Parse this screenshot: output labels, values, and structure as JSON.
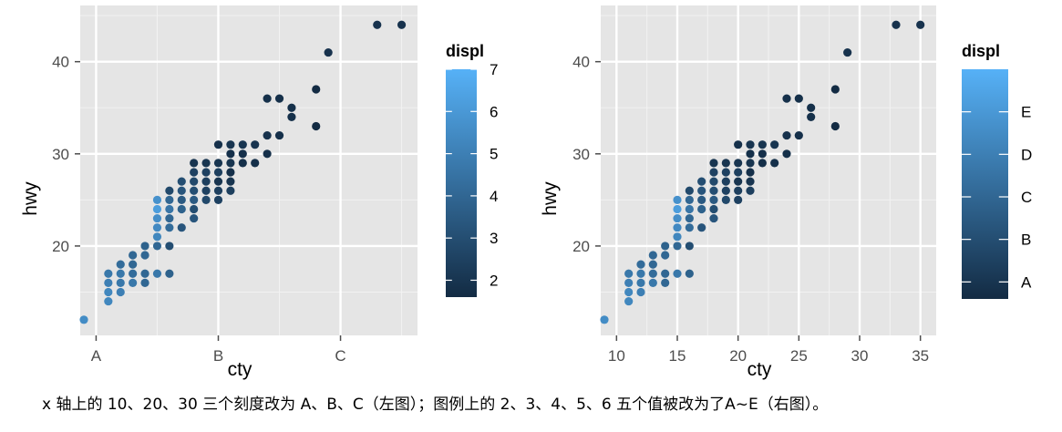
{
  "chart_data": [
    {
      "type": "scatter",
      "xlabel": "cty",
      "ylabel": "hwy",
      "xlim": [
        8.7,
        36.3
      ],
      "ylim": [
        10.3,
        46.1
      ],
      "x_ticks": [
        10,
        20,
        30
      ],
      "x_tick_labels": [
        "A",
        "B",
        "C"
      ],
      "y_ticks": [
        20,
        30,
        40
      ],
      "y_tick_labels": [
        "20",
        "30",
        "40"
      ],
      "legend": {
        "title": "displ",
        "placement": "right",
        "type": "colorbar",
        "range": [
          1.6,
          7.0
        ],
        "breaks": [
          2,
          3,
          4,
          5,
          6,
          7
        ],
        "labels": [
          "2",
          "3",
          "4",
          "5",
          "6",
          "7"
        ],
        "low_color": "#132B43",
        "high_color": "#56B1F7"
      },
      "points": [
        [
          9,
          12,
          5.5
        ],
        [
          11,
          14,
          5.3
        ],
        [
          11,
          15,
          5.3
        ],
        [
          11,
          16,
          5.0
        ],
        [
          11,
          17,
          4.7
        ],
        [
          12,
          15,
          5.0
        ],
        [
          12,
          16,
          4.7
        ],
        [
          12,
          17,
          4.7
        ],
        [
          12,
          18,
          4.2
        ],
        [
          13,
          16,
          4.7
        ],
        [
          13,
          17,
          4.2
        ],
        [
          13,
          18,
          4.0
        ],
        [
          13,
          19,
          4.0
        ],
        [
          14,
          16,
          4.0
        ],
        [
          14,
          17,
          4.0
        ],
        [
          14,
          19,
          4.0
        ],
        [
          14,
          20,
          3.8
        ],
        [
          15,
          17,
          4.7
        ],
        [
          15,
          20,
          4.0
        ],
        [
          15,
          21,
          5.3
        ],
        [
          15,
          22,
          5.4
        ],
        [
          15,
          23,
          5.6
        ],
        [
          15,
          24,
          6.2
        ],
        [
          15,
          25,
          5.7
        ],
        [
          16,
          17,
          3.8
        ],
        [
          16,
          20,
          3.0
        ],
        [
          16,
          22,
          4.2
        ],
        [
          16,
          23,
          4.0
        ],
        [
          16,
          24,
          4.6
        ],
        [
          16,
          25,
          4.0
        ],
        [
          16,
          26,
          2.8
        ],
        [
          17,
          22,
          3.3
        ],
        [
          17,
          24,
          3.8
        ],
        [
          17,
          25,
          3.5
        ],
        [
          17,
          26,
          3.3
        ],
        [
          17,
          27,
          3.0
        ],
        [
          18,
          23,
          3.3
        ],
        [
          18,
          24,
          3.0
        ],
        [
          18,
          25,
          3.5
        ],
        [
          18,
          26,
          3.0
        ],
        [
          18,
          27,
          2.8
        ],
        [
          18,
          28,
          2.5
        ],
        [
          18,
          29,
          2.0
        ],
        [
          19,
          25,
          2.8
        ],
        [
          19,
          26,
          2.5
        ],
        [
          19,
          27,
          2.4
        ],
        [
          19,
          28,
          2.5
        ],
        [
          19,
          29,
          2.0
        ],
        [
          20,
          25,
          2.5
        ],
        [
          20,
          26,
          2.4
        ],
        [
          20,
          27,
          2.0
        ],
        [
          20,
          28,
          2.4
        ],
        [
          20,
          29,
          2.0
        ],
        [
          20,
          31,
          1.8
        ],
        [
          21,
          26,
          2.4
        ],
        [
          21,
          27,
          2.0
        ],
        [
          21,
          28,
          1.8
        ],
        [
          21,
          29,
          2.0
        ],
        [
          21,
          30,
          1.8
        ],
        [
          21,
          31,
          2.0
        ],
        [
          22,
          29,
          1.8
        ],
        [
          22,
          30,
          1.8
        ],
        [
          22,
          31,
          2.0
        ],
        [
          23,
          29,
          1.8
        ],
        [
          23,
          31,
          2.0
        ],
        [
          24,
          30,
          1.8
        ],
        [
          24,
          32,
          1.9
        ],
        [
          24,
          36,
          1.8
        ],
        [
          25,
          32,
          1.8
        ],
        [
          25,
          36,
          1.8
        ],
        [
          26,
          34,
          1.8
        ],
        [
          26,
          35,
          1.8
        ],
        [
          28,
          33,
          1.6
        ],
        [
          28,
          37,
          1.6
        ],
        [
          29,
          41,
          1.9
        ],
        [
          33,
          44,
          1.9
        ],
        [
          35,
          44,
          1.9
        ]
      ]
    },
    {
      "type": "scatter",
      "xlabel": "cty",
      "ylabel": "hwy",
      "xlim": [
        8.7,
        36.3
      ],
      "ylim": [
        10.3,
        46.1
      ],
      "x_ticks": [
        10,
        15,
        20,
        25,
        30,
        35
      ],
      "x_tick_labels": [
        "10",
        "15",
        "20",
        "25",
        "30",
        "35"
      ],
      "y_ticks": [
        20,
        30,
        40
      ],
      "y_tick_labels": [
        "20",
        "30",
        "40"
      ],
      "legend": {
        "title": "displ",
        "placement": "right",
        "type": "colorbar",
        "range": [
          1.6,
          7.0
        ],
        "breaks": [
          2,
          3,
          4,
          5,
          6
        ],
        "labels": [
          "A",
          "B",
          "C",
          "D",
          "E"
        ],
        "low_color": "#132B43",
        "high_color": "#56B1F7"
      },
      "points": "same as left panel"
    }
  ],
  "caption": "x 轴上的 10、20、30 三个刻度改为 A、B、C（左图）；图例上的 2、3、4、5、6 五个值被改为了A~E（右图）。"
}
